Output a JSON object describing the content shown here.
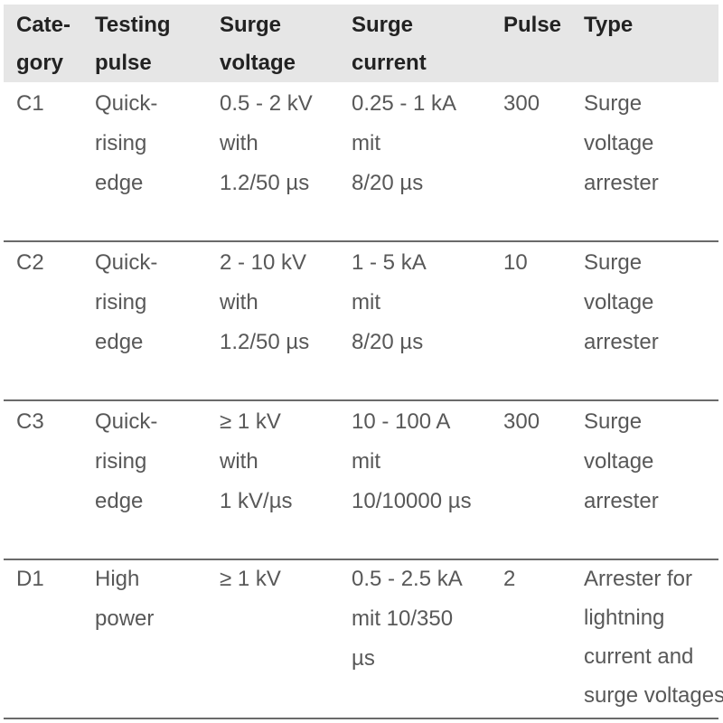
{
  "table": {
    "headers": [
      [
        "Cate-",
        "gory"
      ],
      [
        "Testing",
        "pulse"
      ],
      [
        "Surge",
        "voltage"
      ],
      [
        "Surge",
        "current"
      ],
      [
        "Pulse"
      ],
      [
        "Type"
      ]
    ],
    "rows": [
      [
        [
          "C1"
        ],
        [
          "Quick-",
          "rising",
          "edge"
        ],
        [
          "0.5 - 2 kV",
          "with",
          "1.2/50 µs"
        ],
        [
          "0.25 - 1 kA",
          "mit",
          "8/20 µs"
        ],
        [
          "300"
        ],
        [
          "Surge",
          "voltage",
          "arrester"
        ]
      ],
      [
        [
          "C2"
        ],
        [
          "Quick-",
          "rising",
          "edge"
        ],
        [
          "2 - 10 kV",
          "with",
          "1.2/50 µs"
        ],
        [
          "1 - 5 kA",
          "mit",
          "8/20 µs"
        ],
        [
          "10"
        ],
        [
          "Surge",
          "voltage",
          "arrester"
        ]
      ],
      [
        [
          "C3"
        ],
        [
          "Quick-",
          "rising",
          "edge"
        ],
        [
          "≥ 1 kV",
          "with",
          "1 kV/µs"
        ],
        [
          "10 - 100 A",
          "mit",
          "10/10000 µs"
        ],
        [
          "300"
        ],
        [
          "Surge",
          "voltage",
          "arrester"
        ]
      ],
      [
        [
          "D1"
        ],
        [
          "High",
          "power"
        ],
        [
          "≥ 1 kV"
        ],
        [
          "0.5 - 2.5 kA",
          "mit 10/350",
          "µs"
        ],
        [
          "2"
        ],
        [
          "Arrester for",
          "lightning",
          "current and",
          "surge voltages"
        ]
      ]
    ]
  }
}
